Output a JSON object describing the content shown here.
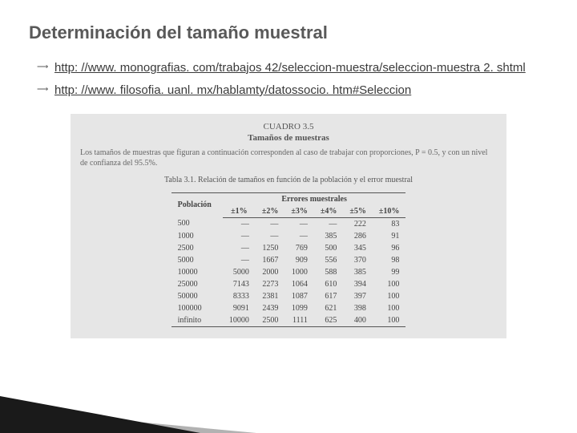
{
  "title": "Determinación del tamaño muestral",
  "links": [
    "http: //www. monografias. com/trabajos 42/seleccion-muestra/seleccion-muestra 2. shtml",
    "http: //www. filosofia. uanl. mx/hablamty/datossocio. htm#Seleccion"
  ],
  "scan": {
    "cuadro_line1": "CUADRO 3.5",
    "cuadro_line2": "Tamaños de muestras",
    "intro": "Los tamaños de muestras que figuran a continuación corresponden al caso de trabajar con proporciones, P = 0.5, y con un nivel de confianza del 95.5%.",
    "tabla_title": "Tabla 3.1.  Relación de tamaños en función de la población y el error muestral",
    "header_errores": "Errores muestrales",
    "header_poblacion": "Población",
    "columns": [
      "±1%",
      "±2%",
      "±3%",
      "±4%",
      "±5%",
      "±10%"
    ],
    "rows": [
      {
        "pop": "500",
        "cells": [
          "—",
          "—",
          "—",
          "—",
          "222",
          "83"
        ]
      },
      {
        "pop": "1000",
        "cells": [
          "—",
          "—",
          "—",
          "385",
          "286",
          "91"
        ]
      },
      {
        "pop": "2500",
        "cells": [
          "—",
          "1250",
          "769",
          "500",
          "345",
          "96"
        ]
      },
      {
        "pop": "5000",
        "cells": [
          "—",
          "1667",
          "909",
          "556",
          "370",
          "98"
        ]
      },
      {
        "pop": "10000",
        "cells": [
          "5000",
          "2000",
          "1000",
          "588",
          "385",
          "99"
        ]
      },
      {
        "pop": "25000",
        "cells": [
          "7143",
          "2273",
          "1064",
          "610",
          "394",
          "100"
        ]
      },
      {
        "pop": "50000",
        "cells": [
          "8333",
          "2381",
          "1087",
          "617",
          "397",
          "100"
        ]
      },
      {
        "pop": "100000",
        "cells": [
          "9091",
          "2439",
          "1099",
          "621",
          "398",
          "100"
        ]
      },
      {
        "pop": "infinito",
        "cells": [
          "10000",
          "2500",
          "1111",
          "625",
          "400",
          "100"
        ]
      }
    ]
  }
}
